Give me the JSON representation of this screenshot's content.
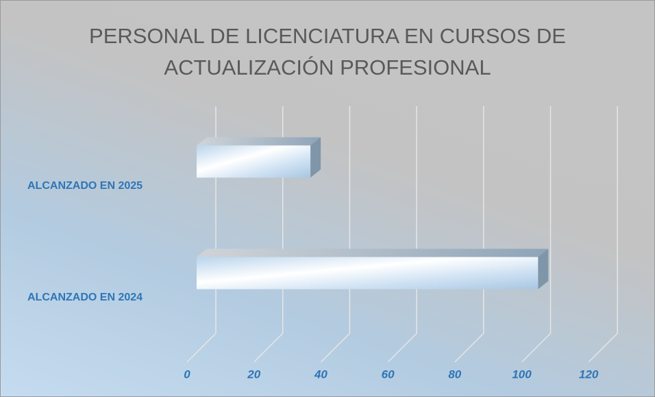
{
  "chart_data": {
    "type": "bar3d_horizontal",
    "title": "PERSONAL DE LICENCIATURA EN CURSOS DE ACTUALIZACIÓN PROFESIONAL",
    "categories": [
      "ALCANZADO EN 2024",
      "ALCANZADO EN 2025"
    ],
    "values": [
      102,
      34
    ],
    "xlim": [
      0,
      120
    ],
    "xticks": [
      0,
      20,
      40,
      60,
      80,
      100,
      120
    ],
    "grid": true,
    "color": "#c9dff2"
  }
}
